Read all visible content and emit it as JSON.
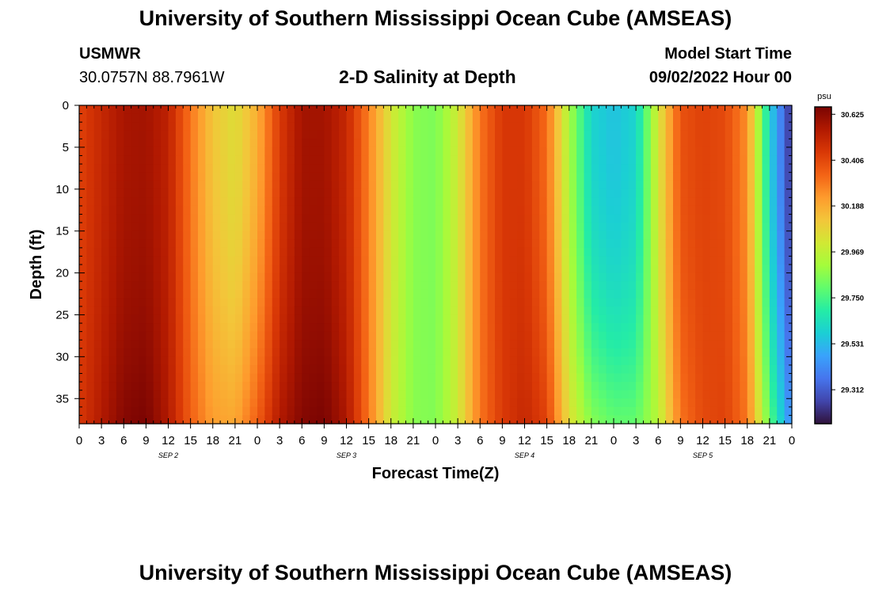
{
  "page": {
    "title_top": "University of Southern Mississippi Ocean Cube (AMSEAS)",
    "title_bottom": "University of Southern Mississippi Ocean Cube (AMSEAS)",
    "station_id": "USMWR",
    "station_coords": "30.0757N  88.7961W",
    "plot_title": "2-D Salinity at Depth",
    "model_start_label": "Model Start Time",
    "model_start_value": "09/02/2022 Hour 00"
  },
  "colors": {
    "scale": [
      "#30123b",
      "#4145ab",
      "#4675ed",
      "#39a2fc",
      "#1bcfd4",
      "#24eca6",
      "#61fc6c",
      "#a4fc3b",
      "#d1e834",
      "#f3c63a",
      "#fe9b2d",
      "#f36315",
      "#d93806",
      "#b11901",
      "#7a0402"
    ]
  },
  "chart_data": {
    "type": "heatmap",
    "title": "2-D Salinity at Depth",
    "xlabel": "Forecast Time(Z)",
    "ylabel": "Depth (ft)",
    "x_hours": [
      0,
      96
    ],
    "x_tick_step_hours": 3,
    "x_tick_labels": [
      "0",
      "3",
      "6",
      "9",
      "12",
      "15",
      "18",
      "21",
      "0",
      "3",
      "6",
      "9",
      "12",
      "15",
      "18",
      "21",
      "0",
      "3",
      "6",
      "9",
      "12",
      "15",
      "18",
      "21",
      "0",
      "3",
      "6",
      "9",
      "12",
      "15",
      "18",
      "21",
      "0"
    ],
    "day_labels": [
      {
        "hour": 12,
        "label": "SEP 2"
      },
      {
        "hour": 36,
        "label": "SEP 3"
      },
      {
        "hour": 60,
        "label": "SEP 4"
      },
      {
        "hour": 84,
        "label": "SEP 5"
      }
    ],
    "ylim": [
      0,
      38
    ],
    "y_ticks": [
      0,
      5,
      10,
      15,
      20,
      25,
      30,
      35
    ],
    "y_tick_labels": [
      "0",
      "5",
      "10",
      "15",
      "20",
      "25",
      "30",
      "35"
    ],
    "colorbar": {
      "unit": "psu",
      "range": [
        29.15,
        30.66
      ],
      "tick_values": [
        30.625,
        30.406,
        30.188,
        29.969,
        29.75,
        29.531,
        29.312
      ],
      "tick_labels": [
        "30.625",
        "30.406",
        "30.188",
        "29.969",
        "29.750",
        "29.531",
        "29.312"
      ]
    },
    "surface_salinity_by_hour": {
      "hours": [
        0,
        3,
        6,
        9,
        12,
        15,
        18,
        21,
        24,
        27,
        30,
        33,
        36,
        39,
        42,
        45,
        48,
        51,
        54,
        57,
        60,
        63,
        66,
        69,
        72,
        75,
        78,
        81,
        84,
        87,
        90,
        93,
        96
      ],
      "values": [
        30.42,
        30.5,
        30.57,
        30.58,
        30.52,
        30.3,
        30.12,
        30.05,
        30.18,
        30.44,
        30.58,
        30.58,
        30.5,
        30.28,
        30.02,
        29.86,
        29.84,
        30.0,
        30.3,
        30.45,
        30.45,
        30.32,
        29.92,
        29.6,
        29.55,
        29.6,
        30.02,
        30.38,
        30.42,
        30.4,
        30.25,
        29.6,
        29.2
      ]
    },
    "bottom_salinity_by_hour": {
      "hours": [
        0,
        3,
        6,
        9,
        12,
        15,
        18,
        21,
        24,
        27,
        30,
        33,
        36,
        39,
        42,
        45,
        48,
        51,
        54,
        57,
        60,
        63,
        66,
        69,
        72,
        75,
        78,
        81,
        84,
        87,
        90,
        93,
        96
      ],
      "values": [
        30.45,
        30.55,
        30.64,
        30.66,
        30.55,
        30.35,
        30.22,
        30.2,
        30.35,
        30.55,
        30.64,
        30.66,
        30.56,
        30.3,
        30.0,
        29.86,
        29.85,
        30.0,
        30.3,
        30.44,
        30.5,
        30.42,
        30.05,
        29.86,
        29.8,
        29.8,
        29.95,
        30.3,
        30.4,
        30.42,
        30.3,
        29.8,
        29.4
      ]
    }
  }
}
